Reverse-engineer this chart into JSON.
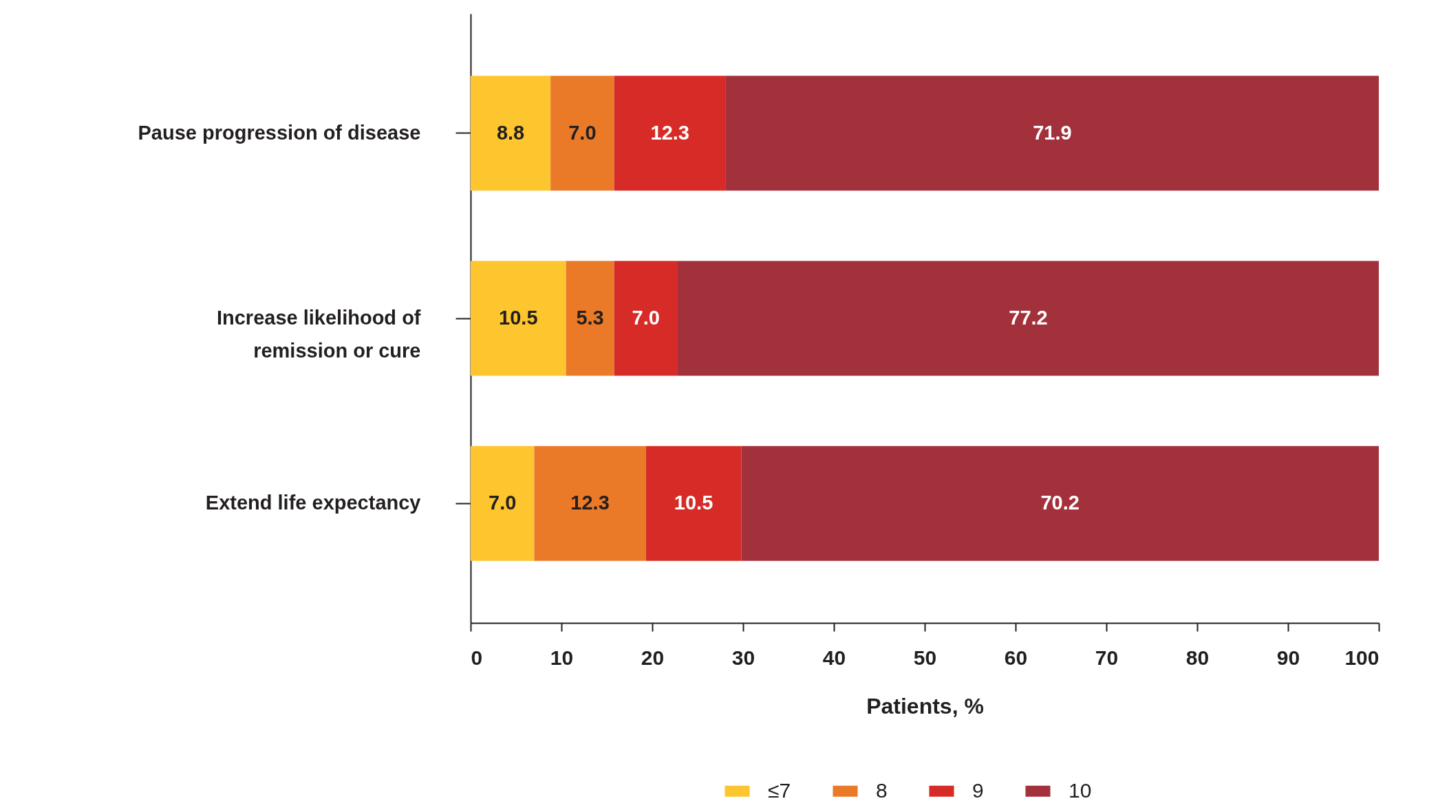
{
  "chart_data": {
    "type": "bar",
    "orientation": "horizontal",
    "stacked": true,
    "xlabel": "Patients, %",
    "categories": [
      "Pause progression of disease",
      "Increase likelihood of remission or cure",
      "Extend life expectancy"
    ],
    "series": [
      {
        "name": "≤7",
        "color": "#fdc52e",
        "values": [
          8.8,
          10.5,
          7.0
        ],
        "value_labels": [
          "8.8",
          "10.5",
          "7.0"
        ]
      },
      {
        "name": "8",
        "color": "#ea7a28",
        "values": [
          7.0,
          5.3,
          12.3
        ],
        "value_labels": [
          "7.0",
          "5.3",
          "12.3"
        ]
      },
      {
        "name": "9",
        "color": "#d62b27",
        "values": [
          12.3,
          7.0,
          10.5
        ],
        "value_labels": [
          "12.3",
          "7.0",
          "10.5"
        ]
      },
      {
        "name": "10",
        "color": "#a3313b",
        "values": [
          71.9,
          77.2,
          70.2
        ],
        "value_labels": [
          "71.9",
          "77.2",
          "70.2"
        ]
      }
    ],
    "xlim": [
      0,
      100
    ],
    "xticks": [
      0,
      10,
      20,
      30,
      40,
      50,
      60,
      70,
      80,
      90,
      100
    ],
    "legend": "bottom",
    "grid": false
  }
}
